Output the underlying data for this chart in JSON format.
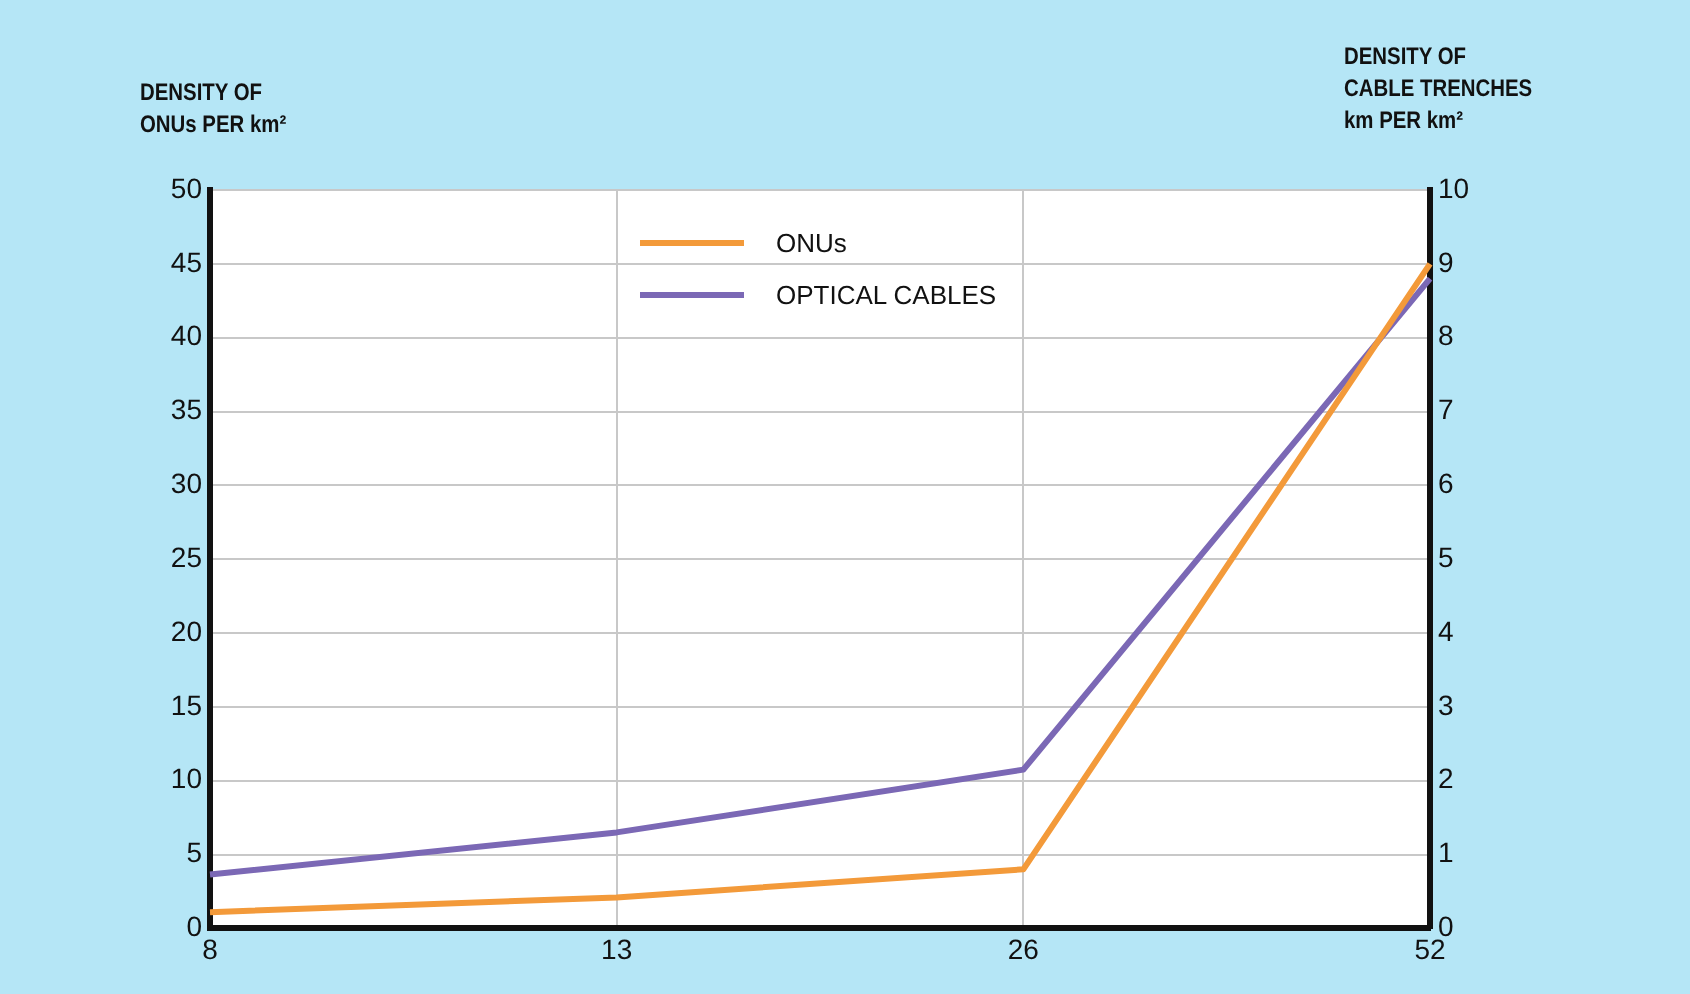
{
  "chart_data": {
    "type": "line",
    "categories": [
      "8",
      "13",
      "26",
      "52"
    ],
    "ylabel": "DENSITY OF\nONUs PER km²",
    "y2label": "DENSITY OF\nCABLE TRENCHES\nkm PER km²",
    "series": [
      {
        "name": "ONUs",
        "color": "#f39a3a",
        "values": [
          1.1,
          2.1,
          4.0,
          45
        ]
      },
      {
        "name": "OPTICAL CABLES",
        "color": "#7b68b5",
        "axis": "y2",
        "values": [
          0.73,
          1.3,
          2.15,
          8.8
        ]
      }
    ],
    "ylim": [
      0,
      50
    ],
    "yticks": [
      0,
      5,
      10,
      15,
      20,
      25,
      30,
      35,
      40,
      45,
      50
    ],
    "y2lim": [
      0,
      10
    ],
    "y2ticks": [
      0,
      1,
      2,
      3,
      4,
      5,
      6,
      7,
      8,
      9,
      10
    ],
    "grid": true,
    "legend": "top",
    "marker": "none",
    "line_style": "solid"
  }
}
